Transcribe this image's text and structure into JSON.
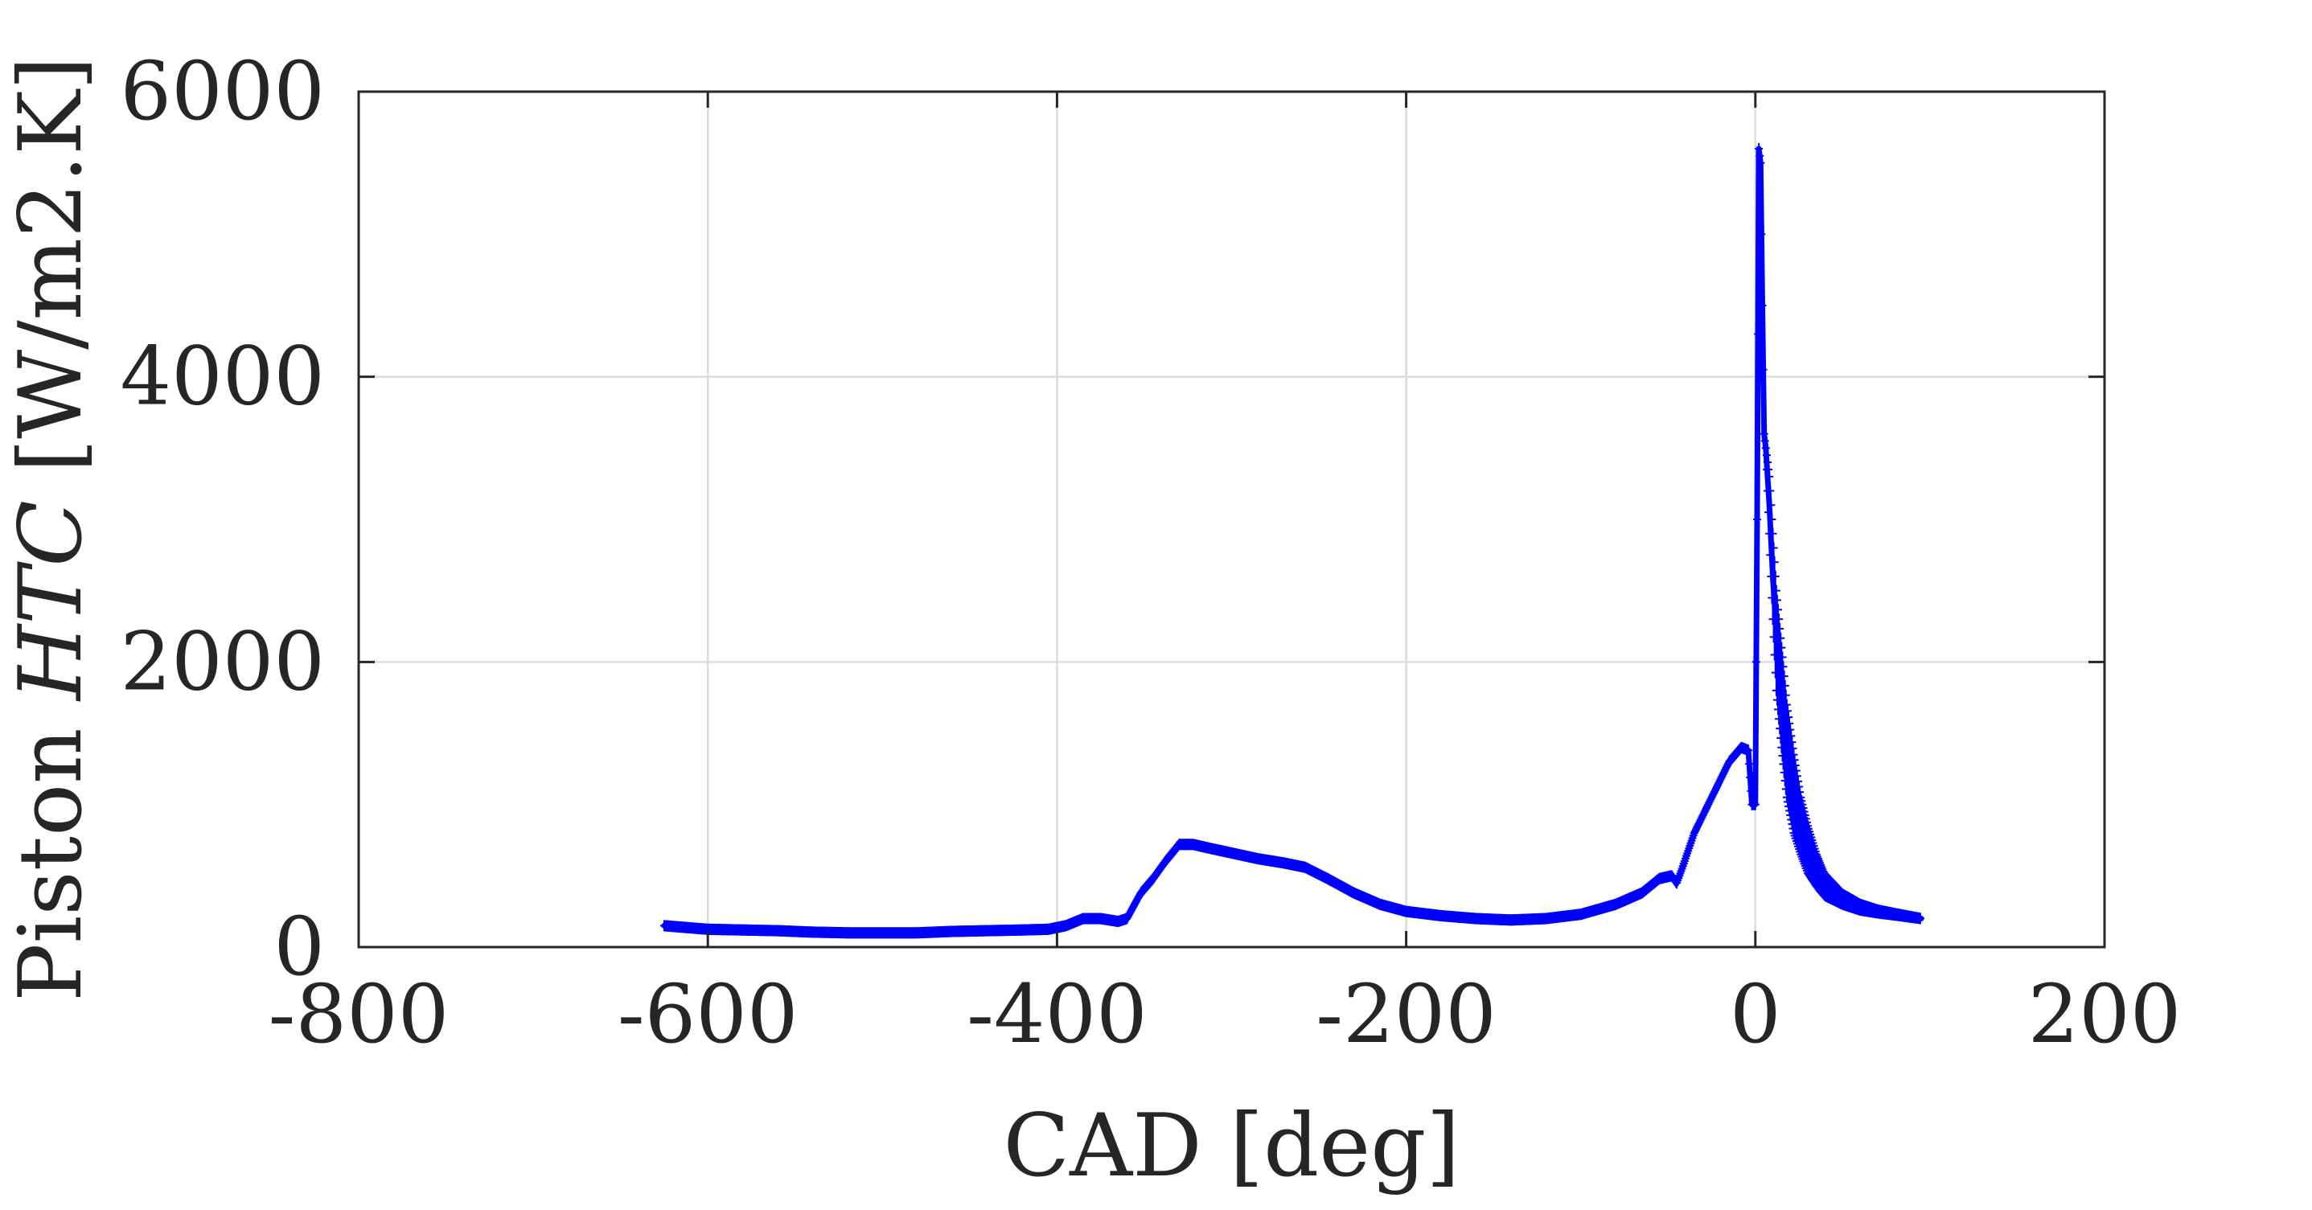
{
  "chart_data": {
    "type": "line",
    "title": "",
    "xlabel": "CAD [deg]",
    "ylabel": {
      "prefix": "Piston ",
      "symbol": "HTC",
      "suffix": " [W/m2.K]"
    },
    "xlim": [
      -800,
      200
    ],
    "ylim": [
      0,
      6000
    ],
    "xticks": [
      -800,
      -600,
      -400,
      -200,
      0,
      200
    ],
    "yticks": [
      0,
      2000,
      4000,
      6000
    ],
    "xtick_labels": [
      "-800",
      "-600",
      "-400",
      "-200",
      "0",
      "200"
    ],
    "ytick_labels": [
      "0",
      "2000",
      "4000",
      "6000"
    ],
    "grid": true,
    "marker": "+",
    "series": [
      {
        "color": "#0000ff",
        "x": [
          -625,
          -600,
          -580,
          -560,
          -540,
          -520,
          -500,
          -480,
          -460,
          -440,
          -420,
          -405,
          -395,
          -385,
          -375,
          -365,
          -360,
          -352,
          -345,
          -338,
          -330,
          -322,
          -315,
          -300,
          -285,
          -270,
          -258,
          -245,
          -230,
          -215,
          -200,
          -180,
          -160,
          -140,
          -120,
          -100,
          -80,
          -65,
          -55,
          -48,
          -45,
          -42,
          -35,
          -25,
          -15,
          -8,
          -4,
          -2,
          0,
          1,
          2,
          3,
          4,
          5,
          6,
          8,
          10,
          12,
          15,
          18,
          22,
          26,
          30,
          35,
          40,
          50,
          60,
          70,
          80,
          95
        ],
        "y": [
          150,
          125,
          120,
          115,
          105,
          100,
          100,
          100,
          110,
          115,
          120,
          125,
          150,
          200,
          200,
          180,
          200,
          380,
          480,
          600,
          720,
          720,
          700,
          660,
          620,
          590,
          560,
          480,
          380,
          300,
          250,
          220,
          200,
          190,
          200,
          230,
          300,
          380,
          480,
          500,
          450,
          550,
          800,
          1050,
          1300,
          1400,
          1380,
          1000,
          1000,
          3000,
          5600,
          5500,
          4500,
          3600,
          3500,
          3100,
          2600,
          2200,
          1800,
          1400,
          1100,
          850,
          700,
          550,
          430,
          330,
          280,
          250,
          230,
          200
        ],
        "y_min": [
          150,
          125,
          120,
          115,
          105,
          100,
          100,
          100,
          110,
          115,
          120,
          125,
          150,
          200,
          200,
          180,
          200,
          380,
          480,
          600,
          720,
          720,
          700,
          660,
          620,
          590,
          560,
          480,
          380,
          300,
          250,
          220,
          200,
          190,
          200,
          230,
          300,
          380,
          480,
          500,
          450,
          550,
          800,
          1050,
          1300,
          1400,
          1380,
          1000,
          1000,
          3000,
          5600,
          5500,
          4500,
          3600,
          3500,
          2900,
          2300,
          1800,
          1400,
          1050,
          800,
          650,
          520,
          430,
          360,
          300,
          260,
          240,
          225,
          200
        ],
        "y_max": [
          150,
          125,
          120,
          115,
          105,
          100,
          100,
          100,
          110,
          115,
          120,
          125,
          150,
          200,
          200,
          180,
          200,
          380,
          480,
          600,
          720,
          720,
          700,
          660,
          620,
          590,
          560,
          480,
          380,
          300,
          250,
          220,
          200,
          190,
          200,
          230,
          300,
          380,
          480,
          500,
          450,
          550,
          800,
          1050,
          1300,
          1400,
          1380,
          1000,
          1000,
          3000,
          5600,
          5500,
          4500,
          3600,
          3500,
          3300,
          2900,
          2500,
          2100,
          1700,
          1350,
          1050,
          850,
          650,
          500,
          370,
          300,
          260,
          235,
          200
        ]
      }
    ]
  }
}
